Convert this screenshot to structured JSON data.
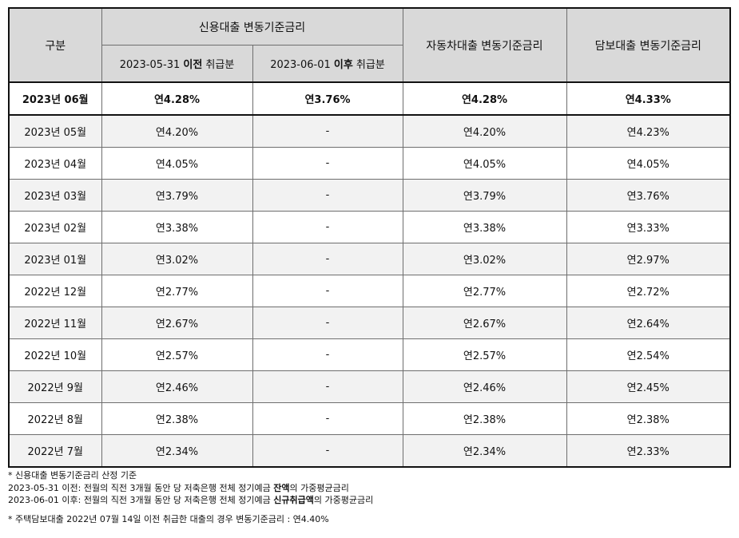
{
  "header": {
    "category": "구분",
    "credit_loan": "신용대출 변동기준금리",
    "before_prefix": "2023-05-31 ",
    "before_bold": "이전",
    "before_suffix": " 취급분",
    "after_prefix": "2023-06-01 ",
    "after_bold": "이후",
    "after_suffix": " 취급분",
    "auto_loan": "자동차대출 변동기준금리",
    "secured_loan": "담보대출 변동기준금리"
  },
  "rows": [
    {
      "month": "2023년 06월",
      "before": "연4.28%",
      "after": "연3.76%",
      "auto": "연4.28%",
      "secured": "연4.33%"
    },
    {
      "month": "2023년 05월",
      "before": "연4.20%",
      "after": "-",
      "auto": "연4.20%",
      "secured": "연4.23%"
    },
    {
      "month": "2023년 04월",
      "before": "연4.05%",
      "after": "-",
      "auto": "연4.05%",
      "secured": "연4.05%"
    },
    {
      "month": "2023년 03월",
      "before": "연3.79%",
      "after": "-",
      "auto": "연3.79%",
      "secured": "연3.76%"
    },
    {
      "month": "2023년 02월",
      "before": "연3.38%",
      "after": "-",
      "auto": "연3.38%",
      "secured": "연3.33%"
    },
    {
      "month": "2023년 01월",
      "before": "연3.02%",
      "after": "-",
      "auto": "연3.02%",
      "secured": "연2.97%"
    },
    {
      "month": "2022년 12월",
      "before": "연2.77%",
      "after": "-",
      "auto": "연2.77%",
      "secured": "연2.72%"
    },
    {
      "month": "2022년 11월",
      "before": "연2.67%",
      "after": "-",
      "auto": "연2.67%",
      "secured": "연2.64%"
    },
    {
      "month": "2022년 10월",
      "before": "연2.57%",
      "after": "-",
      "auto": "연2.57%",
      "secured": "연2.54%"
    },
    {
      "month": "2022년 9월",
      "before": "연2.46%",
      "after": "-",
      "auto": "연2.46%",
      "secured": "연2.45%"
    },
    {
      "month": "2022년 8월",
      "before": "연2.38%",
      "after": "-",
      "auto": "연2.38%",
      "secured": "연2.38%"
    },
    {
      "month": "2022년 7월",
      "before": "연2.34%",
      "after": "-",
      "auto": "연2.34%",
      "secured": "연2.33%"
    }
  ],
  "notes": {
    "line1": "* 신용대출 변동기준금리 산정 기준",
    "line2_prefix": "2023-05-31 이전: 전월의 직전 3개월 동안 당 저축은행 전체 정기예금 ",
    "line2_bold": "잔액",
    "line2_suffix": "의 가중평균금리",
    "line3_prefix": "2023-06-01 이후: 전월의 직전 3개월 동안 당 저축은행 전체 정기예금 ",
    "line3_bold": "신규취급액",
    "line3_suffix": "의 가중평균금리",
    "line4": "* 주택담보대출 2022년 07월 14일 이전 취급한 대출의 경우 변동기준금리 : 연4.40%"
  }
}
